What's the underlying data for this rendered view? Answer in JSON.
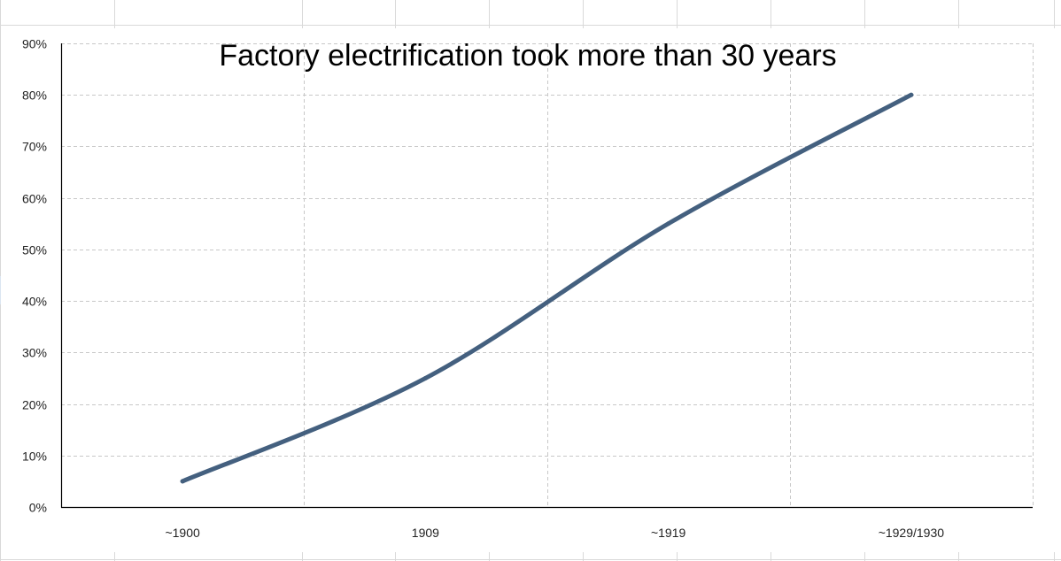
{
  "chart_data": {
    "type": "line",
    "title": "Factory electrification took more than 30 years",
    "xlabel": "",
    "ylabel": "",
    "categories": [
      "~1900",
      "1909",
      "~1919",
      "~1929/1930"
    ],
    "series": [
      {
        "values": [
          5,
          25,
          55,
          80
        ]
      }
    ],
    "ylim": [
      0,
      90
    ],
    "y_ticks": [
      "0%",
      "10%",
      "20%",
      "30%",
      "40%",
      "50%",
      "60%",
      "70%",
      "80%",
      "90%"
    ],
    "grid": true,
    "grid_style": "dashed",
    "line_color": "#44607f",
    "gridline_color": "#c8c8c8",
    "smooth": true
  }
}
